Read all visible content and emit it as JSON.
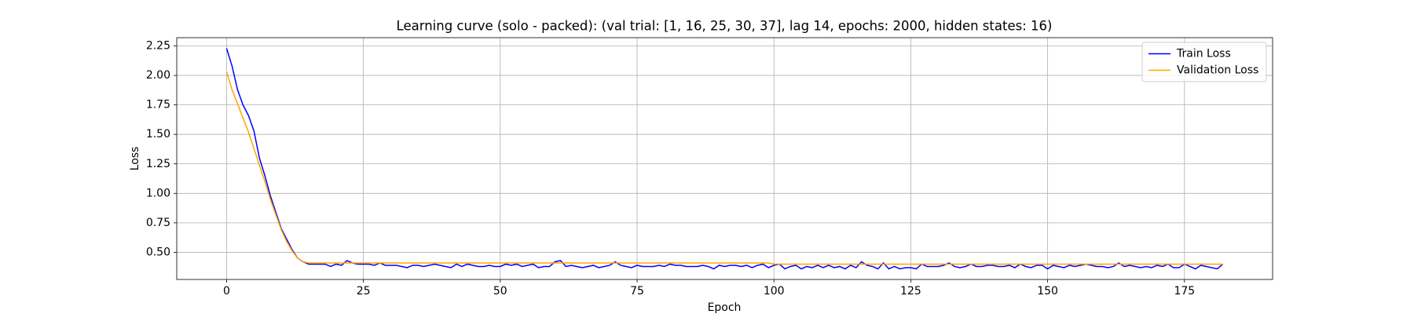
{
  "chart_data": {
    "type": "line",
    "title": "Learning curve (solo - packed): (val trial: [1, 16, 25, 30, 37], lag 14, epochs: 2000, hidden states: 16)",
    "x_label": "Epoch",
    "y_label": "Loss",
    "x": [
      0,
      1,
      2,
      3,
      4,
      5,
      6,
      7,
      8,
      9,
      10,
      11,
      12,
      13,
      14,
      15,
      16,
      17,
      18,
      19,
      20,
      21,
      22,
      23,
      24,
      25,
      26,
      27,
      28,
      29,
      30,
      31,
      32,
      33,
      34,
      35,
      36,
      37,
      38,
      39,
      40,
      41,
      42,
      43,
      44,
      45,
      46,
      47,
      48,
      49,
      50,
      51,
      52,
      53,
      54,
      55,
      56,
      57,
      58,
      59,
      60,
      61,
      62,
      63,
      64,
      65,
      66,
      67,
      68,
      69,
      70,
      71,
      72,
      73,
      74,
      75,
      76,
      77,
      78,
      79,
      80,
      81,
      82,
      83,
      84,
      85,
      86,
      87,
      88,
      89,
      90,
      91,
      92,
      93,
      94,
      95,
      96,
      97,
      98,
      99,
      100,
      101,
      102,
      103,
      104,
      105,
      106,
      107,
      108,
      109,
      110,
      111,
      112,
      113,
      114,
      115,
      116,
      117,
      118,
      119,
      120,
      121,
      122,
      123,
      124,
      125,
      126,
      127,
      128,
      129,
      130,
      131,
      132,
      133,
      134,
      135,
      136,
      137,
      138,
      139,
      140,
      141,
      142,
      143,
      144,
      145,
      146,
      147,
      148,
      149,
      150,
      151,
      152,
      153,
      154,
      155,
      156,
      157,
      158,
      159,
      160,
      161,
      162,
      163,
      164,
      165,
      166,
      167,
      168,
      169,
      170,
      171,
      172,
      173,
      174,
      175,
      176,
      177,
      178,
      179,
      180,
      181,
      182
    ],
    "series": [
      {
        "name": "Train Loss",
        "color": "#0000ff",
        "values": [
          2.23,
          2.08,
          1.88,
          1.75,
          1.66,
          1.53,
          1.3,
          1.15,
          0.98,
          0.84,
          0.7,
          0.61,
          0.52,
          0.45,
          0.42,
          0.4,
          0.4,
          0.4,
          0.4,
          0.38,
          0.4,
          0.39,
          0.43,
          0.41,
          0.4,
          0.4,
          0.4,
          0.39,
          0.41,
          0.39,
          0.39,
          0.39,
          0.38,
          0.37,
          0.39,
          0.39,
          0.38,
          0.39,
          0.4,
          0.39,
          0.38,
          0.37,
          0.4,
          0.38,
          0.4,
          0.39,
          0.38,
          0.38,
          0.39,
          0.38,
          0.38,
          0.4,
          0.39,
          0.4,
          0.38,
          0.39,
          0.4,
          0.37,
          0.38,
          0.38,
          0.42,
          0.43,
          0.38,
          0.39,
          0.38,
          0.37,
          0.38,
          0.39,
          0.37,
          0.38,
          0.39,
          0.42,
          0.39,
          0.38,
          0.37,
          0.39,
          0.38,
          0.38,
          0.38,
          0.39,
          0.38,
          0.4,
          0.39,
          0.39,
          0.38,
          0.38,
          0.38,
          0.39,
          0.38,
          0.36,
          0.39,
          0.38,
          0.39,
          0.39,
          0.38,
          0.39,
          0.37,
          0.39,
          0.4,
          0.37,
          0.39,
          0.4,
          0.36,
          0.38,
          0.39,
          0.36,
          0.38,
          0.37,
          0.39,
          0.37,
          0.39,
          0.37,
          0.38,
          0.36,
          0.39,
          0.37,
          0.42,
          0.39,
          0.38,
          0.36,
          0.41,
          0.36,
          0.38,
          0.36,
          0.37,
          0.37,
          0.36,
          0.4,
          0.38,
          0.38,
          0.38,
          0.39,
          0.41,
          0.38,
          0.37,
          0.38,
          0.4,
          0.38,
          0.38,
          0.39,
          0.39,
          0.38,
          0.38,
          0.39,
          0.37,
          0.4,
          0.38,
          0.37,
          0.39,
          0.39,
          0.36,
          0.39,
          0.38,
          0.37,
          0.39,
          0.38,
          0.39,
          0.4,
          0.39,
          0.38,
          0.38,
          0.37,
          0.38,
          0.41,
          0.38,
          0.39,
          0.38,
          0.37,
          0.38,
          0.37,
          0.39,
          0.38,
          0.4,
          0.37,
          0.37,
          0.4,
          0.38,
          0.36,
          0.39,
          0.38,
          0.37,
          0.36,
          0.4
        ]
      },
      {
        "name": "Validation Loss",
        "color": "#ffa500",
        "values": [
          2.03,
          1.88,
          1.76,
          1.64,
          1.52,
          1.38,
          1.24,
          1.1,
          0.95,
          0.82,
          0.69,
          0.59,
          0.51,
          0.45,
          0.42,
          0.41,
          0.41,
          0.41,
          0.41,
          0.41,
          0.41,
          0.41,
          0.41,
          0.41,
          0.41,
          0.41,
          0.41,
          0.41,
          0.41,
          0.41,
          0.41,
          0.41,
          0.41,
          0.41,
          0.41,
          0.41,
          0.41,
          0.41,
          0.41,
          0.41,
          0.41,
          0.41,
          0.41,
          0.41,
          0.41,
          0.41,
          0.41,
          0.41,
          0.41,
          0.41,
          0.41,
          0.41,
          0.41,
          0.41,
          0.41,
          0.41,
          0.41,
          0.41,
          0.41,
          0.41,
          0.41,
          0.41,
          0.41,
          0.41,
          0.41,
          0.41,
          0.41,
          0.41,
          0.41,
          0.41,
          0.41,
          0.41,
          0.41,
          0.41,
          0.41,
          0.41,
          0.41,
          0.41,
          0.41,
          0.41,
          0.41,
          0.41,
          0.41,
          0.41,
          0.41,
          0.41,
          0.41,
          0.41,
          0.41,
          0.41,
          0.41,
          0.41,
          0.41,
          0.41,
          0.41,
          0.41,
          0.41,
          0.41,
          0.41,
          0.41,
          0.4,
          0.4,
          0.4,
          0.4,
          0.4,
          0.4,
          0.4,
          0.4,
          0.4,
          0.4,
          0.4,
          0.4,
          0.4,
          0.4,
          0.4,
          0.4,
          0.4,
          0.4,
          0.4,
          0.4,
          0.4,
          0.4,
          0.4,
          0.4,
          0.4,
          0.4,
          0.4,
          0.4,
          0.4,
          0.4,
          0.4,
          0.4,
          0.4,
          0.4,
          0.4,
          0.4,
          0.4,
          0.4,
          0.4,
          0.4,
          0.4,
          0.4,
          0.4,
          0.4,
          0.4,
          0.4,
          0.4,
          0.4,
          0.4,
          0.4,
          0.4,
          0.4,
          0.4,
          0.4,
          0.4,
          0.4,
          0.4,
          0.4,
          0.4,
          0.4,
          0.4,
          0.4,
          0.4,
          0.4,
          0.4,
          0.4,
          0.4,
          0.4,
          0.4,
          0.4,
          0.4,
          0.4,
          0.4,
          0.4,
          0.4,
          0.4,
          0.4,
          0.4,
          0.4,
          0.4,
          0.4,
          0.4,
          0.4
        ]
      }
    ],
    "xlim": [
      -9.1,
      191.1
    ],
    "ylim": [
      0.27,
      2.32
    ],
    "xticks": [
      0,
      25,
      50,
      75,
      100,
      125,
      150,
      175
    ],
    "yticks": [
      {
        "value": 0.5,
        "label": "0.50"
      },
      {
        "value": 0.75,
        "label": "0.75"
      },
      {
        "value": 1.0,
        "label": "1.00"
      },
      {
        "value": 1.25,
        "label": "1.25"
      },
      {
        "value": 1.5,
        "label": "1.50"
      },
      {
        "value": 1.75,
        "label": "1.75"
      },
      {
        "value": 2.0,
        "label": "2.00"
      },
      {
        "value": 2.25,
        "label": "2.25"
      }
    ],
    "grid": true,
    "legend": "upper right"
  }
}
